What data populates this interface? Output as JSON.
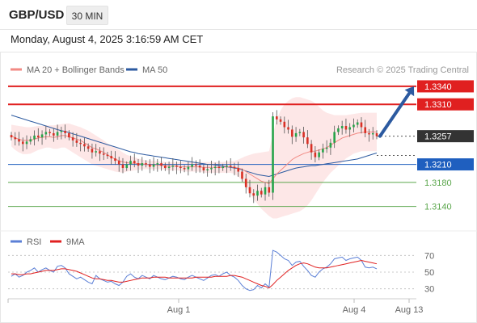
{
  "header": {
    "symbol": "GBP/USD",
    "timeframe": "30 MIN",
    "timestamp": "Monday, August 4, 2025 3:16:59 AM CET"
  },
  "watermark": "Research © 2025 Trading Central",
  "chart_data": [
    {
      "type": "candlestick",
      "legend": [
        {
          "label": "MA 20 + Bollinger Bands",
          "color": "#f28a84"
        },
        {
          "label": "MA 50",
          "color": "#2c5aa0"
        }
      ],
      "x_ticks": [
        "Aug 1",
        "Aug 4",
        "Aug 13"
      ],
      "ylim": [
        1.3118,
        1.3352
      ],
      "levels": [
        {
          "value": 1.334,
          "label": "1.3340",
          "kind": "resistance",
          "color": "#e02020"
        },
        {
          "value": 1.331,
          "label": "1.3310",
          "kind": "resistance",
          "color": "#e02020"
        },
        {
          "value": 1.3257,
          "label": "1.3257",
          "kind": "last",
          "color": "#333333"
        },
        {
          "value": 1.321,
          "label": "1.3210",
          "kind": "pivot",
          "color": "#1f5fbf"
        },
        {
          "value": 1.318,
          "label": "1.3180",
          "kind": "support",
          "color": "#5aa64b"
        },
        {
          "value": 1.314,
          "label": "1.3140",
          "kind": "support",
          "color": "#5aa64b"
        }
      ],
      "close": [
        1.3255,
        1.3252,
        1.3248,
        1.3244,
        1.3248,
        1.3252,
        1.3258,
        1.3255,
        1.326,
        1.3264,
        1.3262,
        1.3258,
        1.3264,
        1.3266,
        1.3262,
        1.3255,
        1.325,
        1.3246,
        1.3244,
        1.324,
        1.3236,
        1.323,
        1.3232,
        1.3228,
        1.3226,
        1.3224,
        1.322,
        1.3216,
        1.321,
        1.3204,
        1.321,
        1.3216,
        1.3212,
        1.3208,
        1.3212,
        1.321,
        1.3206,
        1.321,
        1.3212,
        1.3208,
        1.3204,
        1.3206,
        1.3208,
        1.3206,
        1.3204,
        1.3202,
        1.3206,
        1.321,
        1.3208,
        1.3205,
        1.32,
        1.3202,
        1.3204,
        1.3206,
        1.3204,
        1.3206,
        1.3208,
        1.3206,
        1.3204,
        1.3198,
        1.3186,
        1.3172,
        1.3162,
        1.3158,
        1.3166,
        1.316,
        1.3172,
        1.3163,
        1.329,
        1.3285,
        1.3281,
        1.3272,
        1.3268,
        1.3256,
        1.3262,
        1.3264,
        1.3255,
        1.3244,
        1.323,
        1.3222,
        1.323,
        1.3236,
        1.3238,
        1.3246,
        1.3264,
        1.327,
        1.3274,
        1.3268,
        1.3272,
        1.3276,
        1.328,
        1.3272,
        1.3262,
        1.326,
        1.3262,
        1.3257
      ],
      "ma20": [
        1.3258,
        1.3254,
        1.3252,
        1.325,
        1.325,
        1.325,
        1.3252,
        1.3254,
        1.3255,
        1.3256,
        1.3256,
        1.3255,
        1.3256,
        1.3258,
        1.3258,
        1.3256,
        1.3254,
        1.3252,
        1.325,
        1.3246,
        1.3242,
        1.3238,
        1.3236,
        1.3233,
        1.323,
        1.3226,
        1.3222,
        1.3219,
        1.3216,
        1.3214,
        1.3213,
        1.3212,
        1.3212,
        1.3211,
        1.3211,
        1.321,
        1.3209,
        1.3209,
        1.3209,
        1.3208,
        1.3208,
        1.3207,
        1.3207,
        1.3207,
        1.3206,
        1.3206,
        1.3206,
        1.3206,
        1.3206,
        1.3206,
        1.3205,
        1.3205,
        1.3205,
        1.3205,
        1.3205,
        1.3205,
        1.3206,
        1.3206,
        1.3205,
        1.3204,
        1.3202,
        1.3198,
        1.3194,
        1.319,
        1.3186,
        1.3182,
        1.318,
        1.3178,
        1.3186,
        1.3194,
        1.32,
        1.3206,
        1.3212,
        1.3218,
        1.3222,
        1.3225,
        1.3228,
        1.323,
        1.3232,
        1.3232,
        1.3234,
        1.3236,
        1.3238,
        1.3242,
        1.3246,
        1.325,
        1.3254,
        1.3256,
        1.3258,
        1.326,
        1.3262,
        1.3263,
        1.3264,
        1.3264,
        1.3264,
        1.3264
      ],
      "bb_upper": [
        1.3276,
        1.3275,
        1.3274,
        1.3273,
        1.3272,
        1.3272,
        1.3273,
        1.3274,
        1.3274,
        1.3275,
        1.3275,
        1.3275,
        1.3276,
        1.3277,
        1.3278,
        1.3278,
        1.3276,
        1.3274,
        1.3272,
        1.3269,
        1.3266,
        1.3262,
        1.3258,
        1.3254,
        1.325,
        1.3245,
        1.3241,
        1.3238,
        1.3234,
        1.323,
        1.3226,
        1.3224,
        1.3222,
        1.322,
        1.3218,
        1.3217,
        1.3216,
        1.3216,
        1.3215,
        1.3215,
        1.3214,
        1.3214,
        1.3214,
        1.3214,
        1.3214,
        1.3214,
        1.3214,
        1.3214,
        1.3214,
        1.3214,
        1.3214,
        1.3214,
        1.3214,
        1.3214,
        1.3214,
        1.3214,
        1.3215,
        1.3215,
        1.3216,
        1.3218,
        1.3221,
        1.3224,
        1.3226,
        1.3228,
        1.3229,
        1.323,
        1.3231,
        1.3232,
        1.326,
        1.3285,
        1.33,
        1.331,
        1.3316,
        1.332,
        1.3322,
        1.3322,
        1.332,
        1.3318,
        1.3316,
        1.3312,
        1.3306,
        1.33,
        1.3296,
        1.3294,
        1.3292,
        1.3292,
        1.3292,
        1.3292,
        1.3293,
        1.3294,
        1.3295,
        1.3296,
        1.3296,
        1.3296,
        1.3296,
        1.3296
      ],
      "bb_lower": [
        1.324,
        1.3234,
        1.323,
        1.3227,
        1.3227,
        1.3228,
        1.3231,
        1.3234,
        1.3236,
        1.3238,
        1.3238,
        1.3236,
        1.3236,
        1.3238,
        1.3238,
        1.3234,
        1.323,
        1.3226,
        1.3222,
        1.3218,
        1.3214,
        1.321,
        1.3208,
        1.3206,
        1.3204,
        1.3202,
        1.32,
        1.3198,
        1.3197,
        1.3196,
        1.3198,
        1.3199,
        1.32,
        1.3201,
        1.3202,
        1.3202,
        1.3202,
        1.3202,
        1.3202,
        1.3202,
        1.3201,
        1.32,
        1.32,
        1.32,
        1.3199,
        1.3198,
        1.3198,
        1.3198,
        1.3198,
        1.3198,
        1.3196,
        1.3196,
        1.3196,
        1.3196,
        1.3196,
        1.3196,
        1.3196,
        1.3196,
        1.3194,
        1.319,
        1.3182,
        1.3172,
        1.3162,
        1.3152,
        1.3144,
        1.3136,
        1.313,
        1.3124,
        1.312,
        1.312,
        1.3122,
        1.3124,
        1.3126,
        1.3128,
        1.313,
        1.3132,
        1.3136,
        1.3142,
        1.315,
        1.316,
        1.317,
        1.318,
        1.3188,
        1.3196,
        1.3202,
        1.3208,
        1.3214,
        1.322,
        1.3224,
        1.3228,
        1.323,
        1.3232,
        1.3232,
        1.3232,
        1.3232,
        1.3232
      ],
      "ma50": [
        1.3292,
        1.329,
        1.3288,
        1.3286,
        1.3284,
        1.3282,
        1.328,
        1.3278,
        1.3276,
        1.3274,
        1.3272,
        1.327,
        1.3268,
        1.3266,
        1.3265,
        1.3263,
        1.3261,
        1.3259,
        1.3257,
        1.3255,
        1.3253,
        1.3251,
        1.3249,
        1.3247,
        1.3245,
        1.3243,
        1.3241,
        1.3239,
        1.3237,
        1.3235,
        1.3233,
        1.3231,
        1.323,
        1.3228,
        1.3227,
        1.3226,
        1.3225,
        1.3224,
        1.3223,
        1.3222,
        1.3221,
        1.322,
        1.3219,
        1.3218,
        1.3217,
        1.3216,
        1.3215,
        1.3214,
        1.3213,
        1.3212,
        1.3211,
        1.321,
        1.321,
        1.3209,
        1.3208,
        1.3207,
        1.3206,
        1.3205,
        1.3204,
        1.3203,
        1.3201,
        1.3199,
        1.3197,
        1.3195,
        1.3193,
        1.3192,
        1.3191,
        1.319,
        1.3192,
        1.3194,
        1.3196,
        1.3198,
        1.32,
        1.3202,
        1.3204,
        1.3205,
        1.3206,
        1.3207,
        1.3208,
        1.3208,
        1.3209,
        1.321,
        1.3211,
        1.3212,
        1.3213,
        1.3214,
        1.3215,
        1.3216,
        1.3217,
        1.3218,
        1.3219,
        1.3221,
        1.3223,
        1.3225,
        1.3227,
        1.3229
      ],
      "forecast": {
        "from": 1.3257,
        "to": 1.334
      }
    },
    {
      "type": "line",
      "legend": [
        {
          "label": "RSI",
          "color": "#5b7fd6"
        },
        {
          "label": "9MA",
          "color": "#e02020"
        }
      ],
      "y_ticks": [
        70,
        50,
        30
      ],
      "ylim": [
        20,
        80
      ],
      "rsi": [
        45,
        48,
        44,
        46,
        50,
        52,
        55,
        50,
        53,
        55,
        52,
        50,
        57,
        58,
        55,
        48,
        45,
        42,
        44,
        41,
        38,
        36,
        46,
        42,
        40,
        38,
        39,
        36,
        34,
        38,
        45,
        48,
        44,
        42,
        46,
        44,
        42,
        46,
        44,
        42,
        41,
        43,
        45,
        44,
        42,
        41,
        44,
        46,
        44,
        42,
        40,
        43,
        46,
        47,
        45,
        48,
        50,
        46,
        44,
        40,
        34,
        30,
        28,
        29,
        34,
        31,
        36,
        32,
        76,
        74,
        70,
        66,
        64,
        58,
        62,
        63,
        57,
        52,
        46,
        44,
        50,
        54,
        56,
        60,
        66,
        67,
        68,
        64,
        66,
        67,
        68,
        64,
        56,
        55,
        56,
        54
      ],
      "ma9": [
        48,
        48,
        47,
        47,
        48,
        48,
        49,
        50,
        51,
        52,
        52,
        52,
        53,
        54,
        54,
        53,
        52,
        51,
        49,
        47,
        45,
        43,
        42,
        42,
        41,
        40,
        40,
        39,
        38,
        38,
        39,
        40,
        41,
        42,
        43,
        43,
        43,
        44,
        44,
        44,
        44,
        43,
        43,
        43,
        43,
        43,
        43,
        43,
        44,
        44,
        44,
        44,
        44,
        45,
        45,
        45,
        45,
        46,
        46,
        45,
        44,
        42,
        40,
        38,
        36,
        34,
        33,
        31,
        35,
        40,
        44,
        48,
        52,
        55,
        58,
        60,
        61,
        60,
        58,
        56,
        55,
        55,
        55,
        56,
        57,
        58,
        59,
        60,
        61,
        62,
        63,
        64,
        63,
        62,
        61,
        60
      ]
    }
  ]
}
